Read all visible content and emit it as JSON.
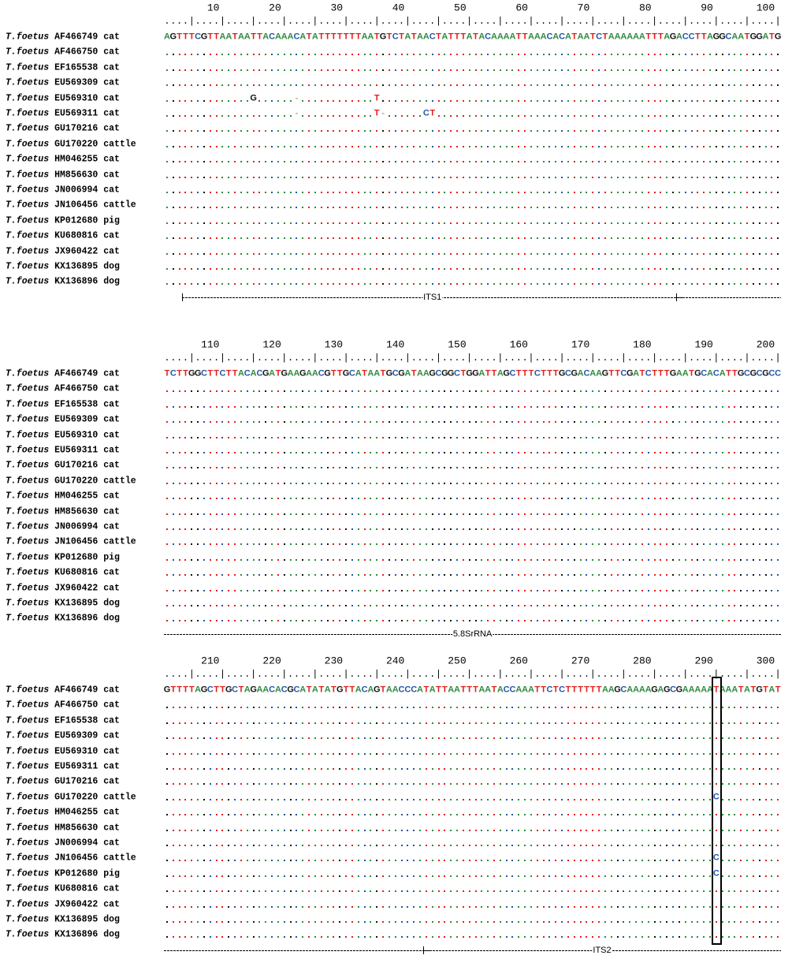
{
  "colors": {
    "A": "#2e8b3e",
    "T": "#e0201b",
    "C": "#2456a8",
    "G": "#111111",
    "-": "#aaaaaa"
  },
  "taxa": [
    {
      "species": "T.foetus",
      "accession": "AF466749",
      "host": "cat"
    },
    {
      "species": "T.foetus",
      "accession": "AF466750",
      "host": "cat"
    },
    {
      "species": "T.foetus",
      "accession": "EF165538",
      "host": "cat"
    },
    {
      "species": "T.foetus",
      "accession": "EU569309",
      "host": "cat"
    },
    {
      "species": "T.foetus",
      "accession": "EU569310",
      "host": "cat"
    },
    {
      "species": "T.foetus",
      "accession": "EU569311",
      "host": "cat"
    },
    {
      "species": "T.foetus",
      "accession": "GU170216",
      "host": "cat"
    },
    {
      "species": "T.foetus",
      "accession": "GU170220",
      "host": "cattle"
    },
    {
      "species": "T.foetus",
      "accession": "HM046255",
      "host": "cat"
    },
    {
      "species": "T.foetus",
      "accession": "HM856630",
      "host": "cat"
    },
    {
      "species": "T.foetus",
      "accession": "JN006994",
      "host": "cat"
    },
    {
      "species": "T.foetus",
      "accession": "JN106456",
      "host": "cattle"
    },
    {
      "species": "T.foetus",
      "accession": "KP012680",
      "host": "pig"
    },
    {
      "species": "T.foetus",
      "accession": "KU680816",
      "host": "cat"
    },
    {
      "species": "T.foetus",
      "accession": "JX960422",
      "host": "cat"
    },
    {
      "species": "T.foetus",
      "accession": "KX136895",
      "host": "dog"
    },
    {
      "species": "T.foetus",
      "accession": "KX136896",
      "host": "dog"
    }
  ],
  "blocks": [
    {
      "start": 1,
      "ruler_labels": [
        "10",
        "20",
        "30",
        "40",
        "50",
        "60",
        "70",
        "80",
        "90",
        "100"
      ],
      "reference": "AGTTTCGTTAATAATTACAAACATATTTTTTTAATGTCTATAACTATTTATACAAAATTAAACACATAATCTAAAAAATTTAGACCTTAGGCAATGGATG",
      "variants": {
        "4": {
          "15": "G",
          "22": "-",
          "35": "T"
        },
        "5": {
          "22": "-",
          "35": "T",
          "36": "-",
          "43": "C",
          "44": "T"
        }
      },
      "regions": [
        {
          "label": "ITS1",
          "from": 4,
          "to": 84
        },
        {
          "label": "",
          "from": 84,
          "to": 100
        }
      ]
    },
    {
      "start": 101,
      "ruler_labels": [
        "110",
        "120",
        "130",
        "140",
        "150",
        "160",
        "170",
        "180",
        "190",
        "200"
      ],
      "reference": "TCTTGGCTTCTTACACGATGAAGAACGTTGCATAATGCGATAAGCGGCTGGATTAGCTTTCTTTGCGACAAGTTCGATCTTTGAATGCACATTGCGCGCC",
      "variants": {},
      "regions": [
        {
          "label": "5.8SrRNA",
          "from": 1,
          "to": 100
        }
      ]
    },
    {
      "start": 201,
      "ruler_labels": [
        "210",
        "220",
        "230",
        "240",
        "250",
        "260",
        "270",
        "280",
        "290",
        "300"
      ],
      "reference": "GTTTTAGCTTGCTAGAACACGCATATATGTTACAGTAACCCATATTAATTTAATACCAAATTCTCTTTTTTAAGCAAAAGAGCGAAAAATAAATATGTATT",
      "variants": {
        "7": {
          "290": "C"
        },
        "11": {
          "290": "C"
        },
        "12": {
          "290": "C"
        }
      },
      "regions": [
        {
          "label": "",
          "from": 1,
          "to": 43
        },
        {
          "label": "ITS2",
          "from": 43,
          "to": 100
        }
      ],
      "highlight_position": 290
    }
  ]
}
